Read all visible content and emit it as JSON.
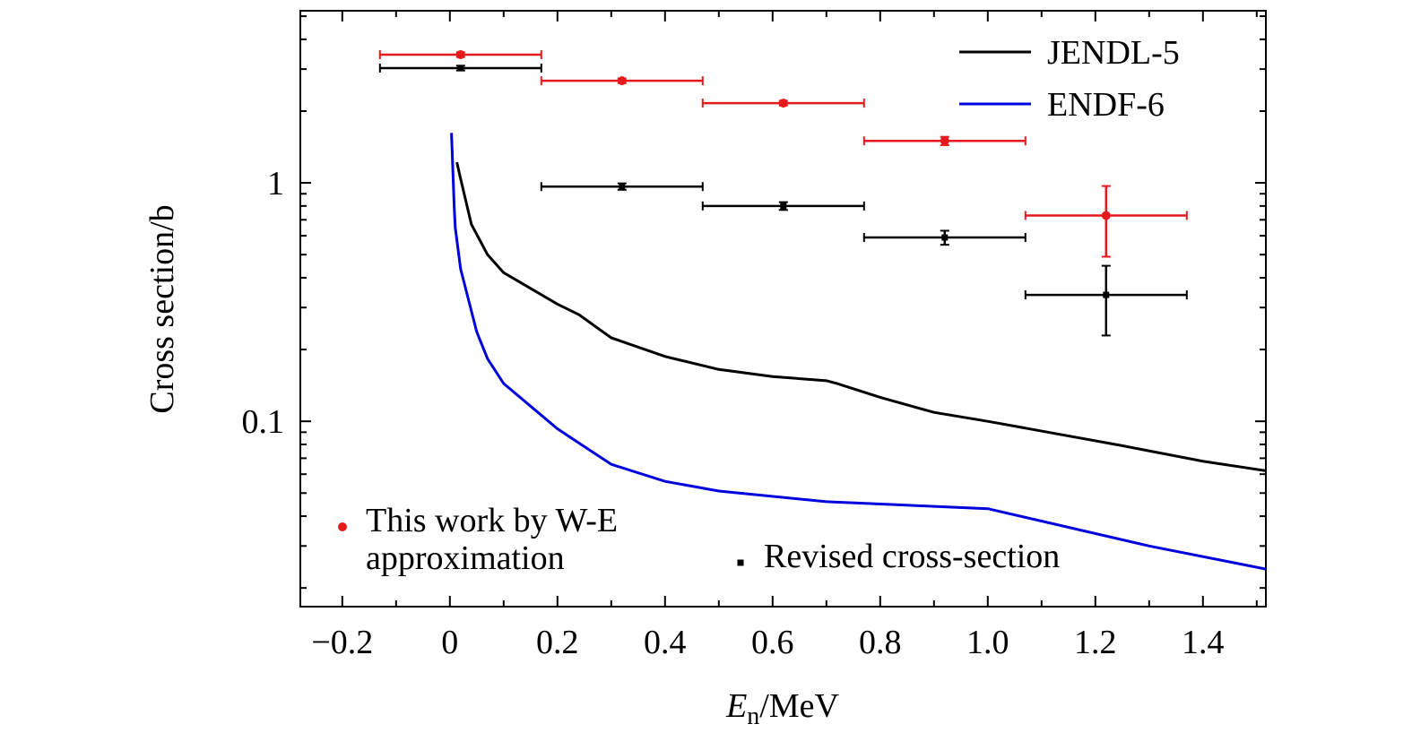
{
  "chart_data": {
    "type": "line",
    "y_label": "Cross section/b",
    "x_label": {
      "symbol": "E",
      "subscript": "n",
      "unit": "/MeV"
    },
    "xlim": [
      -0.278,
      1.517
    ],
    "ylim": [
      0.0167,
      5.27
    ],
    "ylog": true,
    "xticks": [
      {
        "value": -0.2,
        "label": "−0.2"
      },
      0,
      0.2,
      0.4,
      0.6,
      0.8,
      {
        "value": 1,
        "label": "1.0"
      },
      1.2,
      1.4
    ],
    "xminorticks": [
      -0.1,
      0.1,
      0.3,
      0.5,
      0.7,
      0.9,
      1.1,
      1.3,
      1.5
    ],
    "yticks": [
      0.1,
      1
    ],
    "yminorticks": [
      0.02,
      0.03,
      0.04,
      0.05,
      0.06,
      0.07,
      0.08,
      0.09,
      0.2,
      0.3,
      0.4,
      0.5,
      0.6,
      0.7,
      0.8,
      0.9,
      2,
      3,
      4,
      5
    ],
    "series": [
      {
        "name": "JENDL-5",
        "type": "line",
        "color": "#000000",
        "x": [
          0.013,
          0.02,
          0.04,
          0.07,
          0.1,
          0.2,
          0.24,
          0.3,
          0.4,
          0.5,
          0.6,
          0.7,
          0.72,
          0.8,
          0.9,
          1.0,
          1.1,
          1.25,
          1.4,
          1.517
        ],
        "values": [
          1.22,
          1.04,
          0.67,
          0.5,
          0.42,
          0.31,
          0.28,
          0.224,
          0.187,
          0.165,
          0.154,
          0.148,
          0.144,
          0.126,
          0.109,
          0.1,
          0.091,
          0.079,
          0.068,
          0.062
        ]
      },
      {
        "name": "ENDF-6",
        "type": "line",
        "color": "#0000dd",
        "x": [
          0.003,
          0.008,
          0.01,
          0.02,
          0.05,
          0.07,
          0.1,
          0.2,
          0.3,
          0.4,
          0.5,
          0.7,
          1.0,
          1.3,
          1.517
        ],
        "values": [
          1.62,
          0.8,
          0.65,
          0.435,
          0.237,
          0.183,
          0.144,
          0.093,
          0.066,
          0.056,
          0.051,
          0.046,
          0.043,
          0.03,
          0.024
        ]
      },
      {
        "name": "This work by W-E approximation",
        "type": "scatter",
        "color": "#e41a1c",
        "x": [
          0.02,
          0.32,
          0.62,
          0.92,
          1.22
        ],
        "values": [
          3.45,
          2.68,
          2.16,
          1.5,
          0.73
        ],
        "xerr": [
          0.15,
          0.15,
          0.15,
          0.15,
          0.15
        ],
        "yerr": [
          0.08,
          0.06,
          0.05,
          0.06,
          0.24
        ]
      },
      {
        "name": "Revised cross-section",
        "type": "scatter",
        "color": "#000000",
        "x": [
          0.02,
          0.32,
          0.62,
          0.92,
          1.22
        ],
        "values": [
          3.03,
          0.965,
          0.8,
          0.59,
          0.339
        ],
        "xerr": [
          0.15,
          0.15,
          0.15,
          0.15,
          0.15
        ],
        "yerr": [
          0.07,
          0.03,
          0.03,
          0.04,
          0.11
        ]
      }
    ]
  }
}
